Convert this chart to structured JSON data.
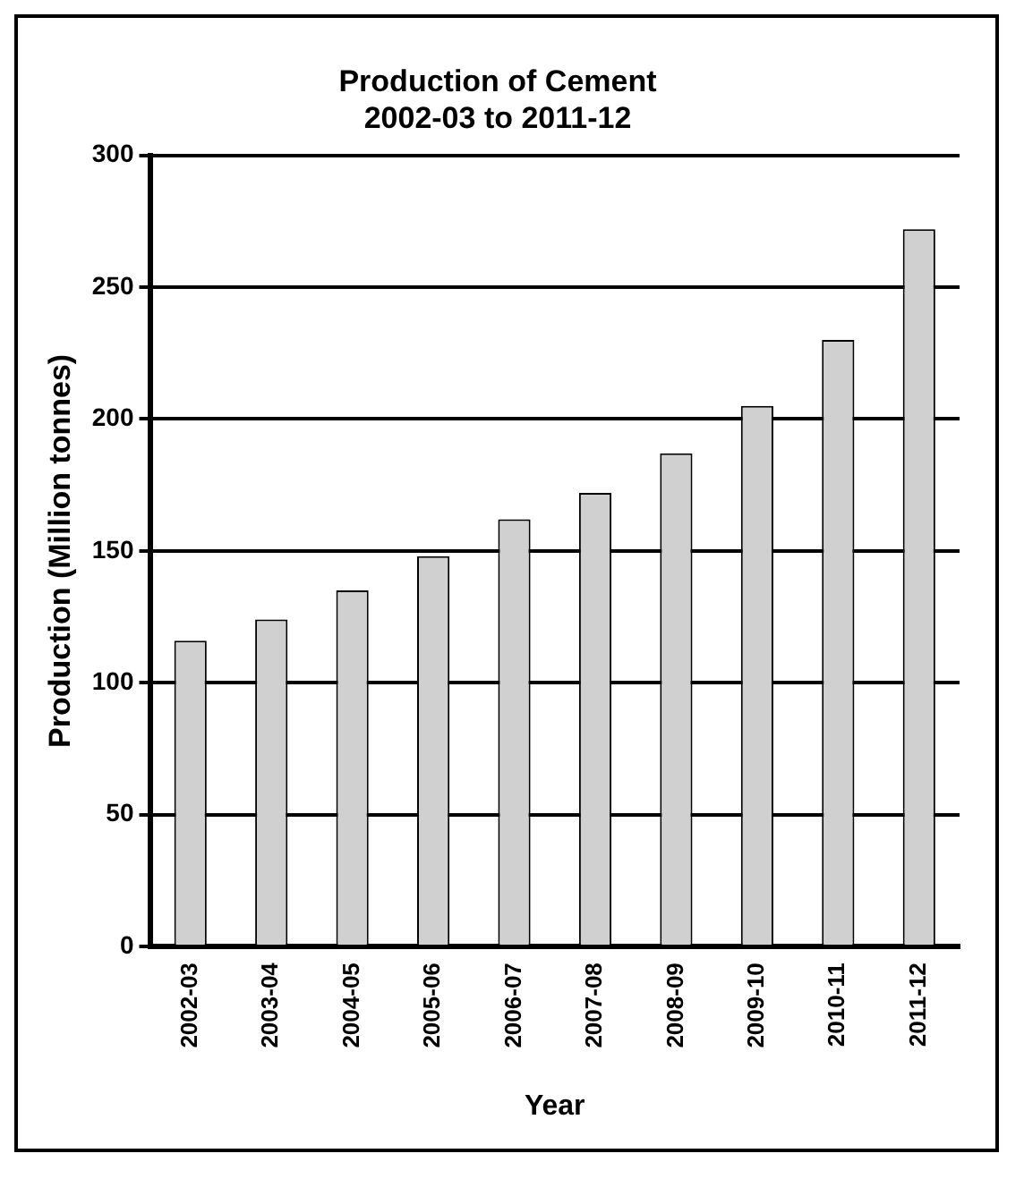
{
  "chart_data": {
    "type": "bar",
    "title": "Production of Cement",
    "subtitle": "2002-03 to 2011-12",
    "xlabel": "Year",
    "ylabel": "Production (Million tonnes)",
    "categories": [
      "2002-03",
      "2003-04",
      "2004-05",
      "2005-06",
      "2006-07",
      "2007-08",
      "2008-09",
      "2009-10",
      "2010-11",
      "2011-12"
    ],
    "values": [
      116,
      124,
      135,
      148,
      162,
      172,
      187,
      205,
      230,
      272
    ],
    "color": "#d0d0d0",
    "ylim": [
      0,
      300
    ],
    "yticks": [
      0,
      50,
      100,
      150,
      200,
      250,
      300
    ],
    "grid": "y"
  }
}
